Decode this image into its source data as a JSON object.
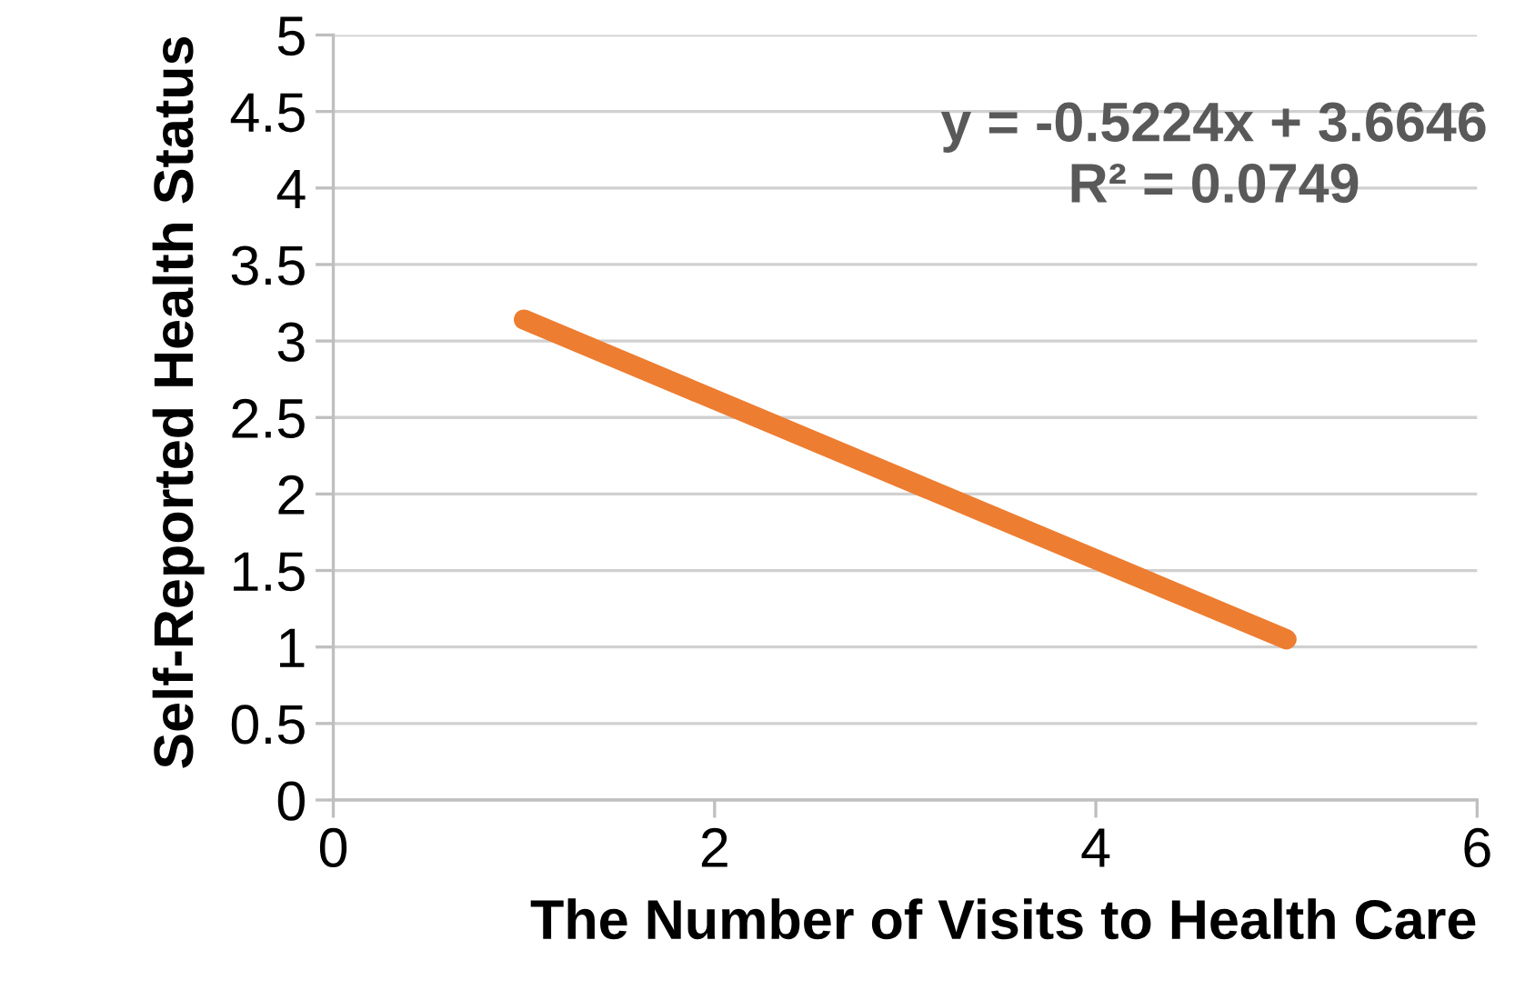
{
  "chart_data": {
    "type": "line",
    "xlabel": "The Number of Visits to Health Care",
    "ylabel": "Self-Reported Health Status",
    "annotations": [
      "y = -0.5224x + 3.6646",
      "R² = 0.0749"
    ],
    "series": [
      {
        "x": [
          1,
          5
        ],
        "values": [
          3.14,
          1.05
        ],
        "color": "#ed7d31"
      }
    ],
    "xlim": [
      0,
      6
    ],
    "xticks": [
      0,
      2,
      4,
      6
    ],
    "ylim": [
      0,
      5
    ],
    "yticks": [
      0,
      0.5,
      1,
      1.5,
      2,
      2.5,
      3,
      3.5,
      4,
      4.5,
      5
    ],
    "grid": "y",
    "line_style": "solid"
  }
}
